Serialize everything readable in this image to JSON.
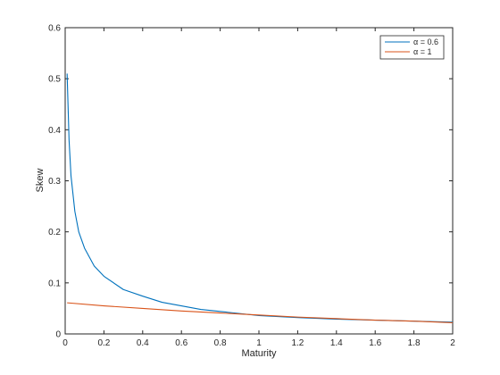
{
  "chart_data": {
    "type": "line",
    "xlabel": "Maturity",
    "ylabel": "Skew",
    "xlim": [
      0,
      2
    ],
    "ylim": [
      0,
      0.6
    ],
    "xticks": [
      "0",
      "0.2",
      "0.4",
      "0.6",
      "0.8",
      "1",
      "1.2",
      "1.4",
      "1.6",
      "1.8",
      "2"
    ],
    "yticks": [
      "0",
      "0.1",
      "0.2",
      "0.3",
      "0.4",
      "0.5",
      "0.6"
    ],
    "grid": false,
    "legend_position": "top-right",
    "series": [
      {
        "name": "α = 0.6",
        "color": "#0072BD",
        "x": [
          0.01,
          0.02,
          0.03,
          0.05,
          0.07,
          0.1,
          0.15,
          0.2,
          0.3,
          0.4,
          0.5,
          0.6,
          0.7,
          0.8,
          0.9,
          1.0,
          1.2,
          1.4,
          1.6,
          1.8,
          2.0
        ],
        "y": [
          0.51,
          0.38,
          0.31,
          0.24,
          0.2,
          0.168,
          0.133,
          0.113,
          0.087,
          0.074,
          0.062,
          0.055,
          0.048,
          0.044,
          0.04,
          0.036,
          0.032,
          0.029,
          0.027,
          0.025,
          0.023
        ]
      },
      {
        "name": "α = 1",
        "color": "#D95319",
        "x": [
          0.01,
          0.2,
          0.4,
          0.6,
          0.8,
          1.0,
          1.2,
          1.4,
          1.6,
          1.8,
          2.0
        ],
        "y": [
          0.061,
          0.055,
          0.05,
          0.045,
          0.041,
          0.037,
          0.033,
          0.03,
          0.027,
          0.025,
          0.022
        ]
      }
    ]
  }
}
